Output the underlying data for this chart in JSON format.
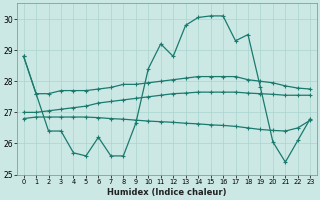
{
  "xlabel": "Humidex (Indice chaleur)",
  "x": [
    0,
    1,
    2,
    3,
    4,
    5,
    6,
    7,
    8,
    9,
    10,
    11,
    12,
    13,
    14,
    15,
    16,
    17,
    18,
    19,
    20,
    21,
    22,
    23
  ],
  "line_main": [
    28.8,
    27.6,
    26.4,
    26.4,
    25.7,
    25.6,
    26.2,
    25.6,
    25.6,
    26.65,
    28.4,
    29.2,
    28.8,
    29.8,
    30.05,
    30.1,
    30.1,
    29.3,
    29.5,
    27.8,
    26.05,
    25.4,
    26.1,
    26.8
  ],
  "line_upper": [
    28.8,
    27.6,
    27.6,
    27.7,
    27.7,
    27.7,
    27.75,
    27.8,
    27.9,
    27.9,
    27.95,
    28.0,
    28.05,
    28.1,
    28.15,
    28.15,
    28.15,
    28.15,
    28.05,
    28.0,
    27.95,
    27.85,
    27.78,
    27.75
  ],
  "line_mid": [
    27.0,
    27.0,
    27.05,
    27.1,
    27.15,
    27.2,
    27.3,
    27.35,
    27.4,
    27.45,
    27.5,
    27.55,
    27.6,
    27.62,
    27.65,
    27.65,
    27.65,
    27.65,
    27.62,
    27.6,
    27.58,
    27.55,
    27.55,
    27.55
  ],
  "line_lower": [
    26.8,
    26.85,
    26.85,
    26.85,
    26.85,
    26.85,
    26.83,
    26.8,
    26.78,
    26.75,
    26.72,
    26.7,
    26.68,
    26.65,
    26.63,
    26.6,
    26.58,
    26.55,
    26.5,
    26.45,
    26.42,
    26.4,
    26.5,
    26.75
  ],
  "color": "#1a7a6e",
  "bg_color": "#cce8e5",
  "grid_color": "#aad4d0",
  "ylim": [
    25,
    30.5
  ],
  "yticks": [
    25,
    26,
    27,
    28,
    29,
    30
  ],
  "xticks": [
    0,
    1,
    2,
    3,
    4,
    5,
    6,
    7,
    8,
    9,
    10,
    11,
    12,
    13,
    14,
    15,
    16,
    17,
    18,
    19,
    20,
    21,
    22,
    23
  ]
}
